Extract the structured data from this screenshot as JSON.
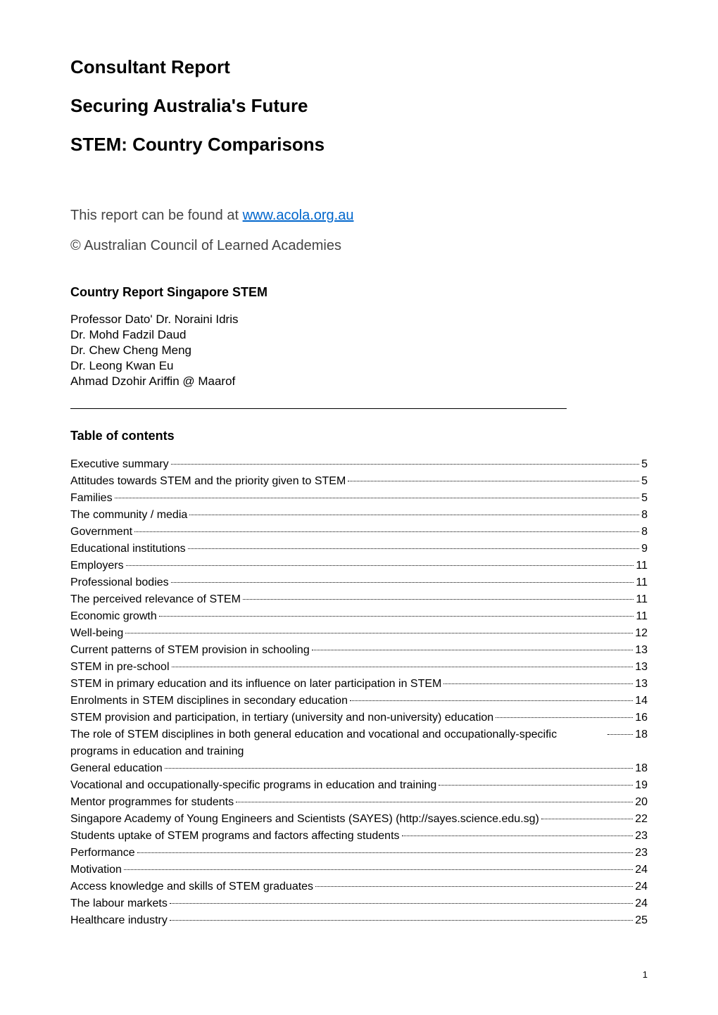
{
  "titles": {
    "h1a": "Consultant Report",
    "h1b": "Securing Australia's Future",
    "h1c": "STEM: Country Comparisons"
  },
  "intro": {
    "text_before_link": "This report can be found at ",
    "link_text": "www.acola.org.au",
    "link_href": "http://www.acola.org.au"
  },
  "copyright": "© Australian Council of Learned Academies",
  "country_heading": "Country Report Singapore STEM",
  "authors": [
    "Professor Dato' Dr. Noraini Idris",
    "Dr. Mohd Fadzil Daud",
    "Dr. Chew Cheng Meng",
    "Dr. Leong Kwan Eu",
    "Ahmad Dzohir Ariffin @ Maarof"
  ],
  "toc_heading": "Table of contents",
  "toc": [
    {
      "label": "Executive summary",
      "page": "5"
    },
    {
      "label": "Attitudes towards STEM and the priority given to STEM",
      "page": "5"
    },
    {
      "label": "Families",
      "page": "5"
    },
    {
      "label": "The community / media",
      "page": "8"
    },
    {
      "label": "Government",
      "page": "8"
    },
    {
      "label": "Educational institutions",
      "page": "9"
    },
    {
      "label": "Employers",
      "page": "11"
    },
    {
      "label": "Professional bodies",
      "page": "11"
    },
    {
      "label": "The perceived relevance of STEM",
      "page": "11"
    },
    {
      "label": "Economic growth",
      "page": "11"
    },
    {
      "label": "Well-being",
      "page": "12"
    },
    {
      "label": "Current patterns of STEM provision in schooling",
      "page": "13"
    },
    {
      "label": "STEM in pre-school",
      "page": "13"
    },
    {
      "label": "STEM in primary education and its influence on later participation in STEM",
      "page": "13"
    },
    {
      "label": "Enrolments in STEM disciplines in secondary education",
      "page": "14"
    },
    {
      "label": "STEM provision and participation, in tertiary (university and non-university) education",
      "page": "16"
    },
    {
      "label": "The role of STEM disciplines in both general education and vocational and occupationally-specific programs in education and training",
      "page": "18",
      "wrap": true
    },
    {
      "label": "General education",
      "page": "18"
    },
    {
      "label": "Vocational and occupationally-specific programs in education and training",
      "page": "19"
    },
    {
      "label": "Mentor programmes for students",
      "page": "20"
    },
    {
      "label": "Singapore Academy of Young Engineers and Scientists (SAYES) (http://sayes.science.edu.sg)",
      "page": "22",
      "wrap": true
    },
    {
      "label": "Students uptake of STEM programs and factors affecting students",
      "page": "23"
    },
    {
      "label": "Performance",
      "page": "23"
    },
    {
      "label": "Motivation",
      "page": "24"
    },
    {
      "label": "Access knowledge and skills of STEM graduates",
      "page": "24"
    },
    {
      "label": "The labour markets",
      "page": "24"
    },
    {
      "label": "Healthcare industry",
      "page": "25"
    }
  ],
  "page_number": "1"
}
